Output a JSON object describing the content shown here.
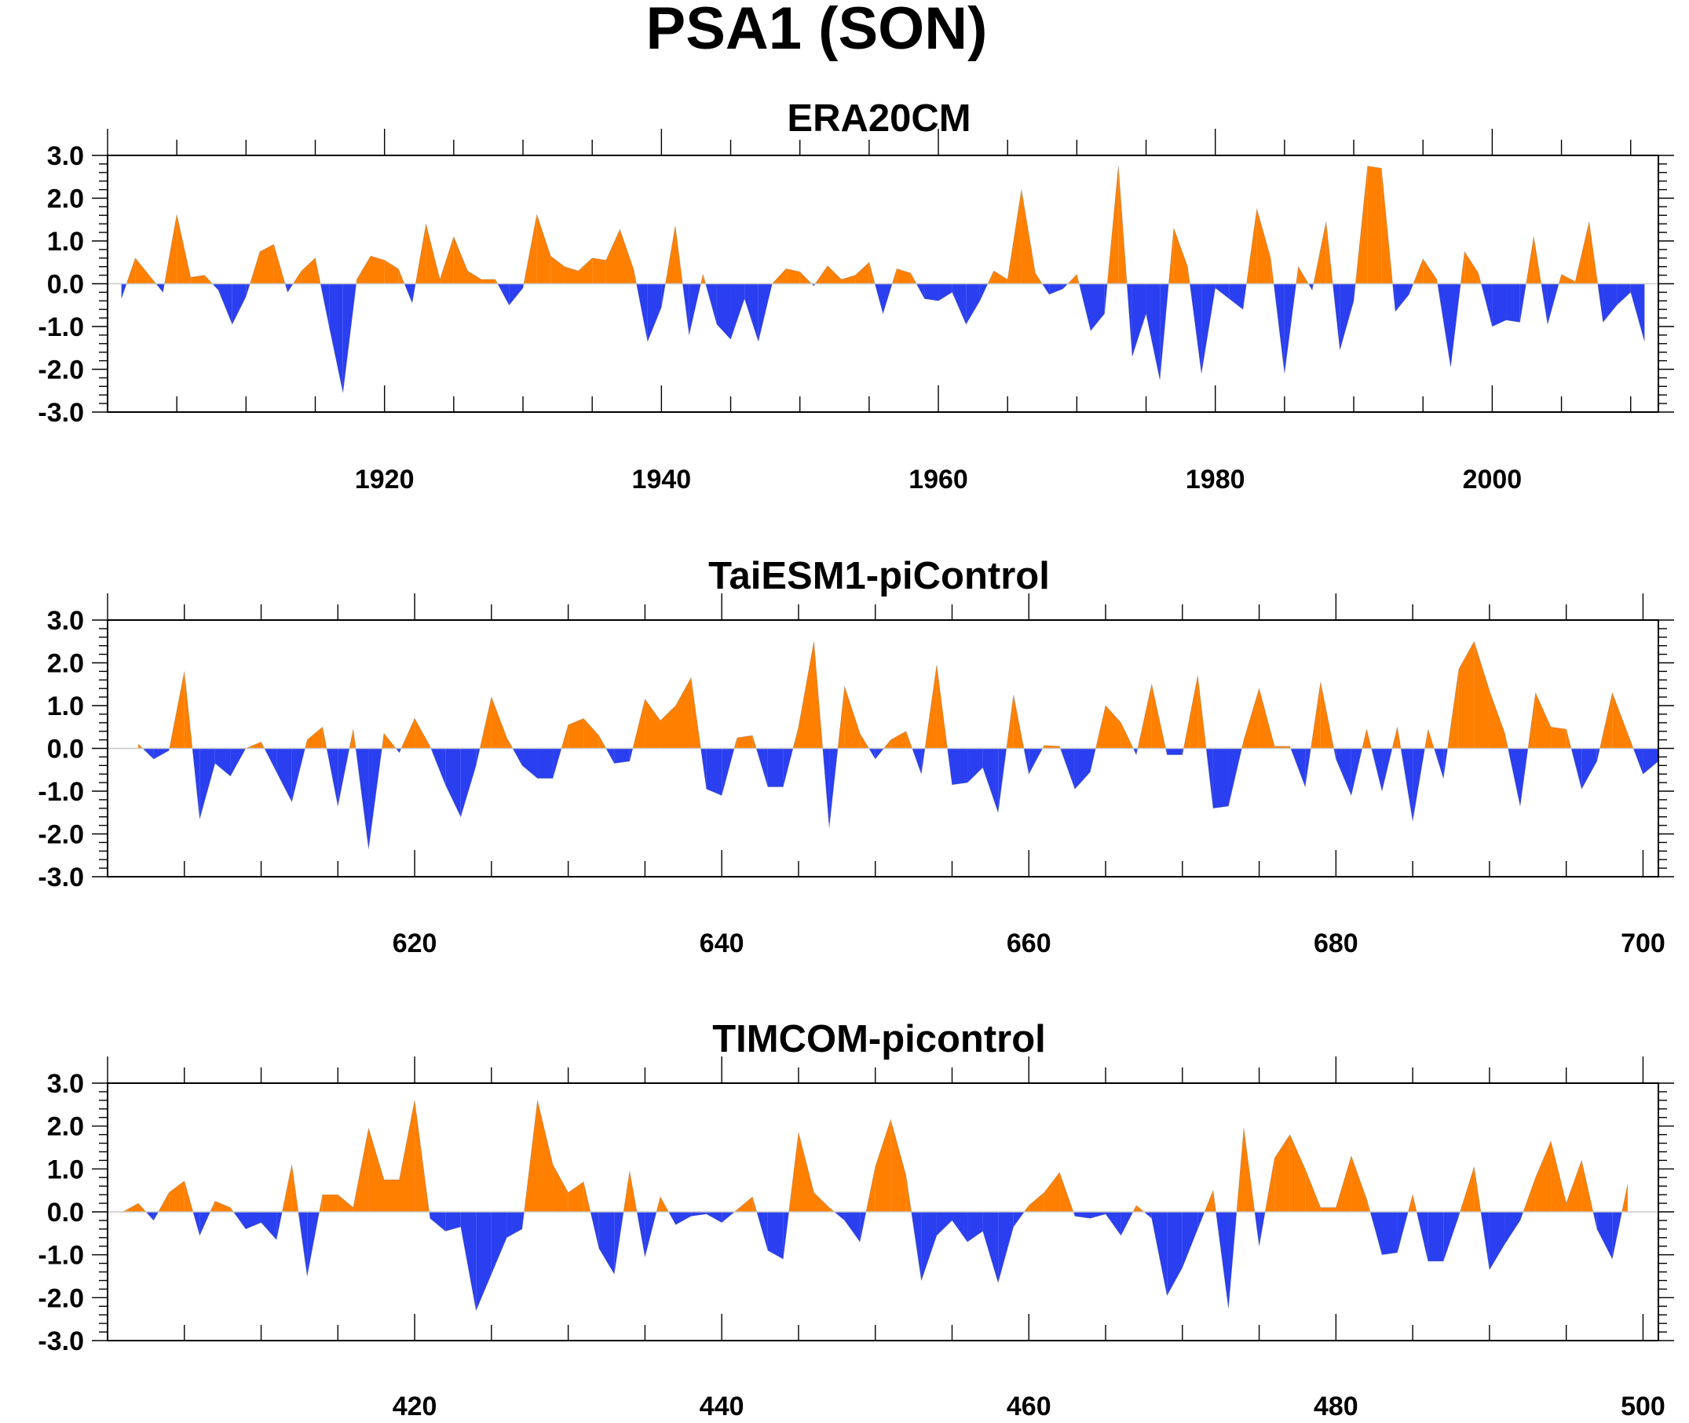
{
  "figure": {
    "title": "PSA1 (SON)",
    "pos_color": "#ff7f00",
    "neg_color": "#2a3ff0"
  },
  "chart_data": [
    {
      "type": "area",
      "title": "ERA20CM",
      "xlabel": "",
      "ylabel": "",
      "xlim": [
        1900,
        2012
      ],
      "ylim": [
        -3.0,
        3.0
      ],
      "yticks": [
        "3.0",
        "2.0",
        "1.0",
        "0.0",
        "-1.0",
        "-2.0",
        "-3.0"
      ],
      "xticks": [
        "1920",
        "1940",
        "1960",
        "1980",
        "2000"
      ],
      "x_start": 1901,
      "values": [
        -0.35,
        0.6,
        0.2,
        -0.2,
        1.62,
        0.15,
        0.2,
        -0.15,
        -0.95,
        -0.3,
        0.75,
        0.92,
        -0.2,
        0.3,
        0.6,
        -1.0,
        -2.55,
        0.1,
        0.65,
        0.55,
        0.35,
        -0.45,
        1.4,
        0.1,
        1.1,
        0.3,
        0.1,
        0.1,
        -0.5,
        -0.1,
        1.62,
        0.65,
        0.4,
        0.3,
        0.6,
        0.55,
        1.27,
        0.33,
        -1.35,
        -0.55,
        1.35,
        -1.2,
        0.22,
        -0.95,
        -1.3,
        -0.35,
        -1.35,
        0.0,
        0.35,
        0.28,
        -0.05,
        0.42,
        0.1,
        0.2,
        0.5,
        -0.7,
        0.35,
        0.25,
        -0.35,
        -0.4,
        -0.2,
        -0.95,
        -0.4,
        0.3,
        0.1,
        2.2,
        0.25,
        -0.25,
        -0.12,
        0.22,
        -1.1,
        -0.7,
        2.75,
        -1.7,
        -0.7,
        -2.25,
        1.3,
        0.4,
        -2.1,
        -0.1,
        -0.35,
        -0.6,
        1.75,
        0.6,
        -2.1,
        0.4,
        -0.15,
        1.45,
        -1.55,
        -0.4,
        2.75,
        2.7,
        -0.65,
        -0.25,
        0.58,
        0.1,
        -1.95,
        0.75,
        0.25,
        -1.0,
        -0.85,
        -0.9,
        1.1,
        -0.95,
        0.22,
        0.05,
        1.45,
        -0.9,
        -0.5,
        -0.2,
        -1.35
      ]
    },
    {
      "type": "area",
      "title": "TaiESM1-piControl",
      "xlabel": "",
      "ylabel": "",
      "xlim": [
        600,
        701
      ],
      "ylim": [
        -3.0,
        3.0
      ],
      "yticks": [
        "3.0",
        "2.0",
        "1.0",
        "0.0",
        "-1.0",
        "-2.0",
        "-3.0"
      ],
      "xticks": [
        "620",
        "640",
        "660",
        "680",
        "700"
      ],
      "x_start": 602,
      "values": [
        0.1,
        -0.25,
        -0.05,
        1.8,
        -1.65,
        -0.35,
        -0.65,
        0.0,
        0.15,
        -0.55,
        -1.25,
        0.2,
        0.5,
        -1.35,
        0.45,
        -2.35,
        0.35,
        -0.1,
        0.7,
        0.05,
        -0.85,
        -1.6,
        -0.4,
        1.2,
        0.25,
        -0.4,
        -0.7,
        -0.7,
        0.55,
        0.7,
        0.3,
        -0.35,
        -0.3,
        1.15,
        0.65,
        1.0,
        1.65,
        -0.95,
        -1.1,
        0.25,
        0.3,
        -0.9,
        -0.9,
        0.5,
        2.5,
        -1.85,
        1.45,
        0.35,
        -0.25,
        0.2,
        0.4,
        -0.6,
        1.95,
        -0.85,
        -0.8,
        -0.45,
        -1.5,
        1.25,
        -0.6,
        0.07,
        0.05,
        -0.95,
        -0.55,
        1.0,
        0.6,
        -0.15,
        1.5,
        -0.15,
        -0.15,
        1.7,
        -1.4,
        -1.35,
        0.2,
        1.4,
        0.05,
        0.05,
        -0.9,
        1.55,
        -0.25,
        -1.1,
        0.45,
        -1.0,
        0.5,
        -1.7,
        0.45,
        -0.7,
        1.85,
        2.5,
        1.35,
        0.35,
        -1.35,
        1.3,
        0.5,
        0.45,
        -0.95,
        -0.3,
        1.3,
        0.35,
        -0.6,
        -0.3
      ]
    },
    {
      "type": "area",
      "title": "TIMCOM-picontrol",
      "xlabel": "",
      "ylabel": "",
      "xlim": [
        400,
        501
      ],
      "ylim": [
        -3.0,
        3.0
      ],
      "yticks": [
        "3.0",
        "2.0",
        "1.0",
        "0.0",
        "-1.0",
        "-2.0",
        "-3.0"
      ],
      "xticks": [
        "420",
        "440",
        "460",
        "480",
        "500"
      ],
      "x_start": 401,
      "values": [
        0.0,
        0.2,
        -0.2,
        0.45,
        0.72,
        -0.55,
        0.25,
        0.1,
        -0.4,
        -0.25,
        -0.65,
        1.1,
        -1.5,
        0.4,
        0.4,
        0.1,
        1.95,
        0.75,
        0.75,
        2.6,
        -0.15,
        -0.45,
        -0.35,
        -2.3,
        -1.45,
        -0.6,
        -0.4,
        2.6,
        1.1,
        0.45,
        0.7,
        -0.85,
        -1.45,
        0.95,
        -1.05,
        0.35,
        -0.3,
        -0.1,
        -0.05,
        -0.25,
        0.05,
        0.35,
        -0.9,
        -1.1,
        1.85,
        0.45,
        0.1,
        -0.2,
        -0.7,
        1.05,
        2.15,
        0.85,
        -1.6,
        -0.55,
        -0.2,
        -0.7,
        -0.45,
        -1.65,
        -0.35,
        0.15,
        0.45,
        0.92,
        -0.1,
        -0.15,
        -0.05,
        -0.55,
        0.15,
        -0.15,
        -1.95,
        -1.3,
        -0.4,
        0.5,
        -2.25,
        1.95,
        -0.8,
        1.25,
        1.8,
        1.0,
        0.1,
        0.1,
        1.3,
        0.3,
        -1.0,
        -0.95,
        0.4,
        -1.15,
        -1.15,
        -0.1,
        1.05,
        -1.35,
        -0.75,
        -0.2,
        0.8,
        1.65,
        0.2,
        1.2,
        -0.4,
        -1.1,
        0.65
      ]
    }
  ]
}
